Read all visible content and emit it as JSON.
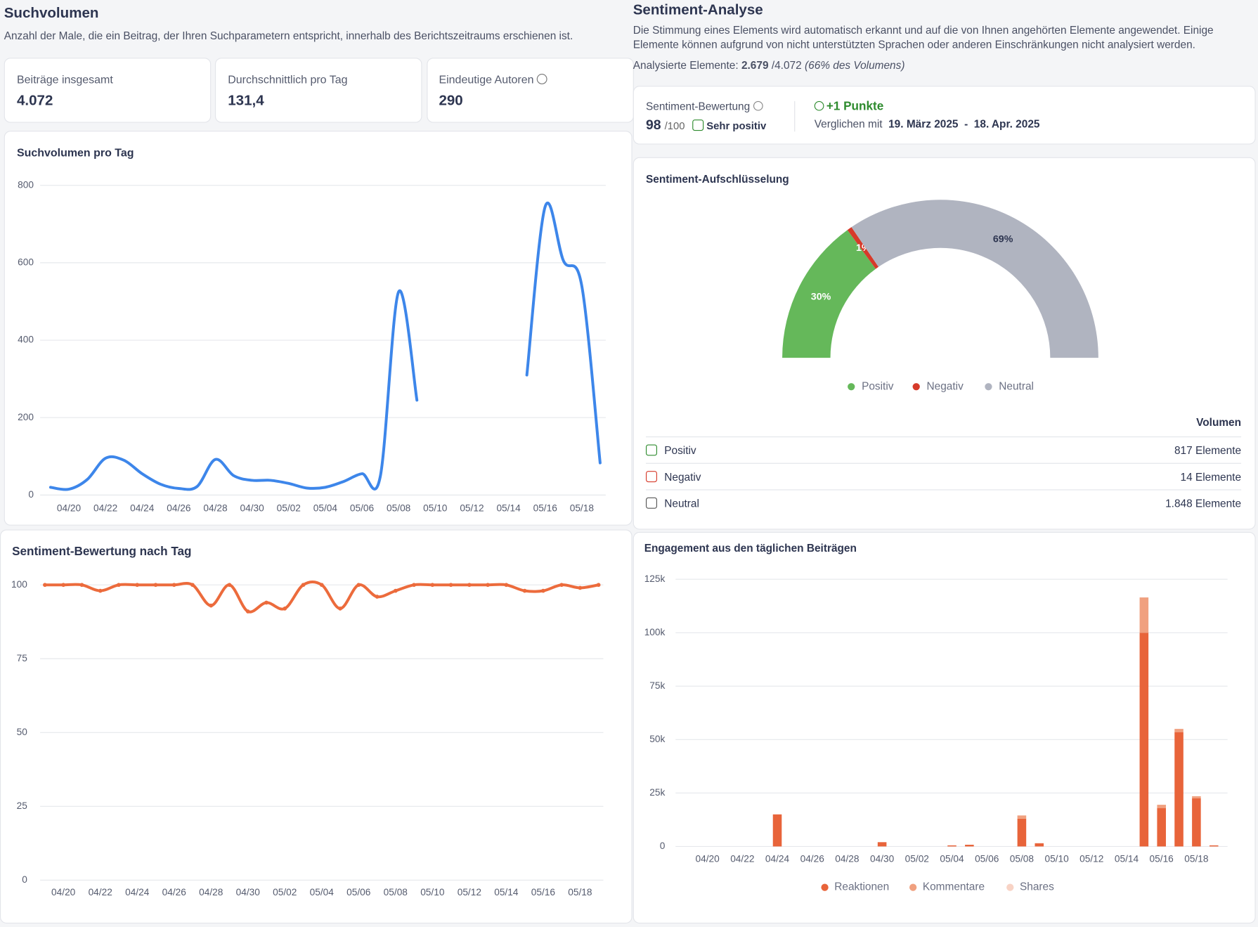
{
  "left_header": {
    "title": "Suchvolumen",
    "description": "Anzahl der Male, die ein Beitrag, der Ihren Suchparametern entspricht, innerhalb des Berichtszeitraums erschienen ist."
  },
  "stats": [
    {
      "label": "Beiträge insgesamt",
      "value": "4.072"
    },
    {
      "label": "Durchschnittlich pro Tag",
      "value": "131,4"
    },
    {
      "label": "Eindeutige Autoren",
      "value": "290"
    }
  ],
  "right_header": {
    "title": "Sentiment-Analyse",
    "description": "Die Stimmung eines Elements wird automatisch erkannt und auf die von Ihnen angehörten Elemente angewendet. Einige Elemente können aufgrund von nicht unterstützten Sprachen oder anderen Einschränkungen nicht analysiert werden.",
    "analyzed_label": "Analysierte Elemente:",
    "analyzed_value": "2.679",
    "analyzed_total": "/4.072",
    "analyzed_note": "(66% des Volumens)"
  },
  "score": {
    "label": "Sentiment-Bewertung",
    "value": "98",
    "max": "/100",
    "rating": "Sehr positiv",
    "change": "+1 Punkte",
    "compare_label": "Verglichen mit",
    "range_start": "19. März 2025",
    "range_sep": "-",
    "range_end": "18. Apr. 2025"
  },
  "volume_table": {
    "header": "Volumen",
    "rows": [
      {
        "name": "Positiv",
        "value": "817 Elemente"
      },
      {
        "name": "Negativ",
        "value": "14 Elemente"
      },
      {
        "name": "Neutral",
        "value": "1.848 Elemente"
      }
    ]
  },
  "chart_data": [
    {
      "type": "line",
      "title": "Suchvolumen pro Tag",
      "color": "#3d86ea",
      "grid": true,
      "categories": [
        null,
        "04/20",
        null,
        "04/22",
        null,
        "04/24",
        null,
        "04/26",
        null,
        "04/28",
        null,
        "04/30",
        null,
        "05/02",
        null,
        "05/04",
        null,
        "05/06",
        null,
        "05/08",
        null,
        "05/10",
        null,
        "05/12",
        null,
        "05/14",
        null,
        "05/16",
        null,
        "05/18",
        null
      ],
      "values": [
        20,
        15,
        40,
        95,
        90,
        55,
        28,
        17,
        22,
        92,
        50,
        38,
        38,
        30,
        18,
        20,
        35,
        55,
        48,
        525,
        245,
        null,
        null,
        null,
        null,
        null,
        310,
        745,
        605,
        540,
        83
      ],
      "ylim": [
        0,
        800
      ],
      "yticks": [
        0,
        200,
        400,
        600,
        800
      ]
    },
    {
      "type": "line",
      "title": "Sentiment-Bewertung nach Tag",
      "color": "#ec6b3c",
      "markers": true,
      "grid": true,
      "categories": [
        null,
        "04/20",
        null,
        "04/22",
        null,
        "04/24",
        null,
        "04/26",
        null,
        "04/28",
        null,
        "04/30",
        null,
        "05/02",
        null,
        "05/04",
        null,
        "05/06",
        null,
        "05/08",
        null,
        "05/10",
        null,
        "05/12",
        null,
        "05/14",
        null,
        "05/16",
        null,
        "05/18",
        null
      ],
      "values": [
        100,
        100,
        100,
        98,
        100,
        100,
        100,
        100,
        100,
        93,
        100,
        91,
        94,
        92,
        100,
        100,
        92,
        100,
        96,
        98,
        100,
        100,
        100,
        100,
        100,
        100,
        98,
        98,
        100,
        99,
        100
      ],
      "ylim": [
        0,
        100
      ],
      "yticks": [
        0,
        25,
        50,
        75,
        100
      ]
    },
    {
      "type": "pie",
      "title": "Sentiment-Aufschlüsselung",
      "half": true,
      "legend": "bottom",
      "categories": [
        "Positiv",
        "Negativ",
        "Neutral"
      ],
      "values": [
        30,
        1,
        69
      ],
      "value_labels": [
        "30%",
        "1%",
        "69%"
      ],
      "colors": [
        "#65b85a",
        "#d63a2a",
        "#b0b4c0"
      ]
    },
    {
      "type": "bar",
      "stacked": true,
      "title": "Engagement aus den täglichen Beiträgen",
      "legend": "bottom",
      "grid": true,
      "categories": [
        null,
        "04/20",
        null,
        "04/22",
        null,
        "04/24",
        null,
        "04/26",
        null,
        "04/28",
        null,
        "04/30",
        null,
        "05/02",
        null,
        "05/04",
        null,
        "05/06",
        null,
        "05/08",
        null,
        "05/10",
        null,
        "05/12",
        null,
        "05/14",
        null,
        "05/16",
        null,
        "05/18",
        null
      ],
      "series": [
        {
          "name": "Reaktionen",
          "color": "#e8643a",
          "values": [
            0,
            0,
            0,
            0,
            0,
            15000,
            0,
            0,
            0,
            0,
            0,
            2000,
            0,
            0,
            0,
            500,
            800,
            0,
            0,
            13000,
            1500,
            0,
            0,
            0,
            0,
            0,
            100000,
            18000,
            53500,
            22500,
            500
          ]
        },
        {
          "name": "Kommentare",
          "color": "#f0a07f",
          "values": [
            0,
            0,
            0,
            0,
            0,
            0,
            0,
            0,
            0,
            0,
            0,
            0,
            0,
            0,
            0,
            0,
            0,
            0,
            0,
            1500,
            0,
            0,
            0,
            0,
            0,
            0,
            16500,
            1500,
            1500,
            1000,
            0
          ]
        },
        {
          "name": "Shares",
          "color": "#f8d3c5",
          "values": [
            0,
            0,
            0,
            0,
            0,
            0,
            0,
            0,
            0,
            0,
            0,
            0,
            0,
            0,
            0,
            0,
            0,
            0,
            0,
            0,
            0,
            0,
            0,
            0,
            0,
            0,
            0,
            0,
            0,
            0,
            0
          ]
        }
      ],
      "ylim": [
        0,
        125000
      ],
      "yticks": [
        0,
        {
          "value": 25000,
          "label": "25k"
        },
        {
          "value": 50000,
          "label": "50k"
        },
        {
          "value": 75000,
          "label": "75k"
        },
        {
          "value": 100000,
          "label": "100k"
        },
        {
          "value": 125000,
          "label": "125k"
        }
      ]
    }
  ]
}
